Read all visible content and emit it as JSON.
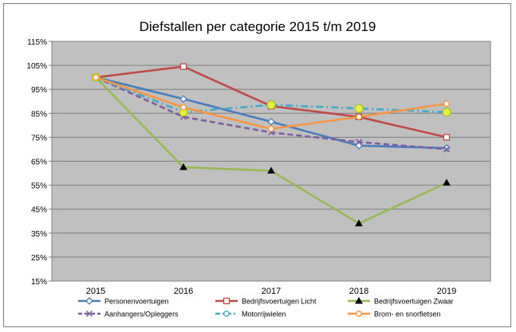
{
  "chart_data": {
    "type": "line",
    "title": "Diefstallen per categorie 2015 t/m 2019",
    "categories": [
      "2015",
      "2016",
      "2017",
      "2018",
      "2019"
    ],
    "y_ticks": [
      "115%",
      "105%",
      "95%",
      "85%",
      "75%",
      "65%",
      "55%",
      "45%",
      "35%",
      "25%",
      "15%"
    ],
    "ylim": [
      15,
      115
    ],
    "grid": true,
    "legend_position": "bottom",
    "series": [
      {
        "name": "Personenvoertuigen",
        "values": [
          100,
          91,
          81.5,
          71.5,
          70.5
        ],
        "color": "#4a7ebb",
        "marker": "diamond",
        "dash": "solid"
      },
      {
        "name": "Bedrijfsvoertuigen Licht",
        "values": [
          100,
          104.5,
          88,
          83.5,
          75
        ],
        "color": "#be4b48",
        "marker": "square",
        "dash": "solid"
      },
      {
        "name": "Bedrijfsvoertuigen Zwaar",
        "values": [
          100,
          62.5,
          61,
          39,
          56
        ],
        "color": "#98b954",
        "marker": "triangle",
        "dash": "solid"
      },
      {
        "name": "Aanhangers/Opleggers",
        "values": [
          100,
          83.5,
          77,
          73,
          70
        ],
        "color": "#7d60a0",
        "marker": "x",
        "dash": "dash"
      },
      {
        "name": "Motorrijwielen",
        "values": [
          100,
          85.5,
          88.5,
          87,
          85.5
        ],
        "color": "#46aac5",
        "marker": "circle-big",
        "dash": "dashdot"
      },
      {
        "name": "Brom- en snorfietsen",
        "values": [
          100,
          87.5,
          78.5,
          83.5,
          89
        ],
        "color": "#f79646",
        "marker": "circle",
        "dash": "solid"
      }
    ]
  }
}
